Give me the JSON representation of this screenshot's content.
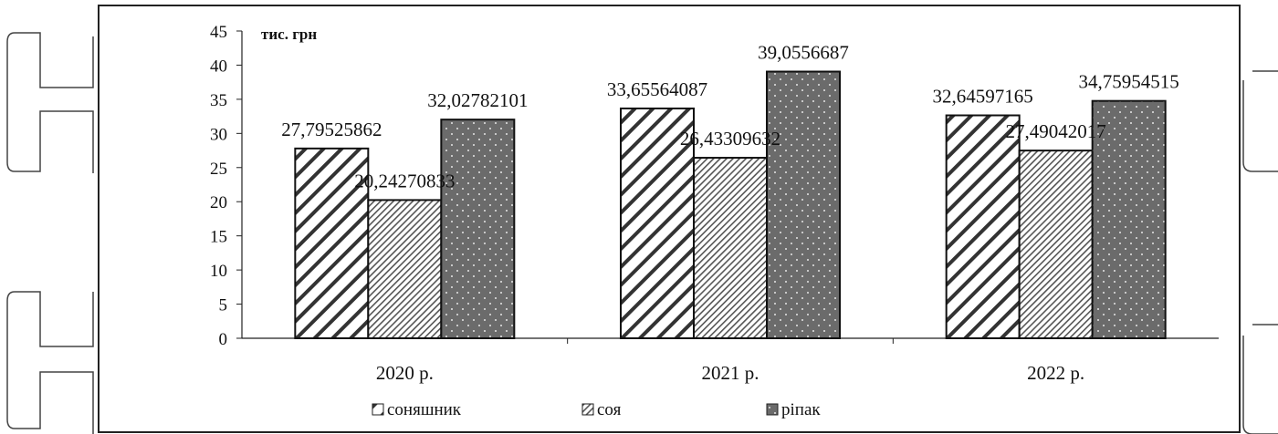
{
  "chart_data": {
    "type": "bar",
    "title": "",
    "xlabel": "",
    "ylabel": "",
    "unit_label": "тис. грн",
    "categories": [
      "2020 р.",
      "2021 р.",
      "2022 р."
    ],
    "series": [
      {
        "name": "соняшник",
        "values": [
          27.79525862,
          33.65564087,
          32.64597165
        ],
        "labels": [
          "27,79525862",
          "33,65564087",
          "32,64597165"
        ],
        "pattern": "diagonal-hatch",
        "color": "#ffffff"
      },
      {
        "name": "соя",
        "values": [
          20.24270833,
          26.43309632,
          27.49042017
        ],
        "labels": [
          "20,24270833",
          "26,43309632",
          "27,49042017"
        ],
        "pattern": "fine-hatch",
        "color": "#ffffff"
      },
      {
        "name": "ріпак",
        "values": [
          32.02782101,
          39.0556687,
          34.75954515
        ],
        "labels": [
          "32,02782101",
          "39,0556687",
          "34,75954515"
        ],
        "pattern": "dotted-dark",
        "color": "#6b6b6b"
      }
    ],
    "ylim": [
      0,
      45
    ],
    "yticks": [
      0,
      5,
      10,
      15,
      20,
      25,
      30,
      35,
      40,
      45
    ],
    "grid": false,
    "legend_position": "bottom"
  }
}
